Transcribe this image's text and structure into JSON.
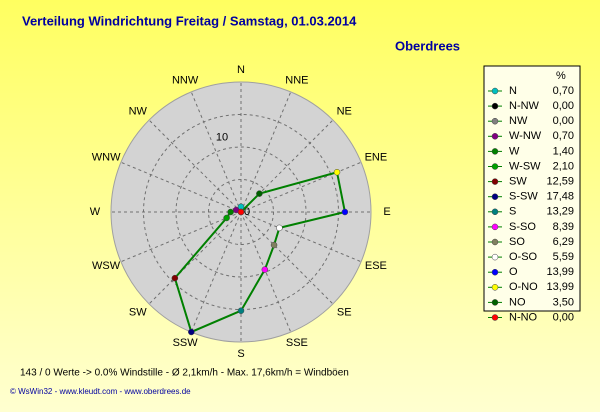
{
  "chart_data": {
    "type": "polar",
    "title": "Verteilung Windrichtung  Freitag / Samstag, 01.03.2014",
    "station": "Oberdrees",
    "legend_header": "%",
    "direction_labels": [
      "N",
      "NNE",
      "NE",
      "ENE",
      "E",
      "ESE",
      "SE",
      "SSE",
      "S",
      "SSW",
      "SW",
      "WSW",
      "W",
      "WNW",
      "NW",
      "NNW"
    ],
    "categories": [
      "N",
      "N-NW",
      "NW",
      "W-NW",
      "W",
      "W-SW",
      "SW",
      "S-SW",
      "S",
      "S-SO",
      "SO",
      "O-SO",
      "O",
      "O-NO",
      "NO",
      "N-NO"
    ],
    "values": [
      0.7,
      0.0,
      0.0,
      0.7,
      1.4,
      2.1,
      12.59,
      17.48,
      13.29,
      8.39,
      6.29,
      5.59,
      13.99,
      13.99,
      3.5,
      0.0
    ],
    "value_labels": [
      "0,70",
      "0,00",
      "0,00",
      "0,70",
      "1,40",
      "2,10",
      "12,59",
      "17,48",
      "13,29",
      "8,39",
      "6,29",
      "5,59",
      "13,99",
      "13,99",
      "3,50",
      "0,00"
    ],
    "colors": [
      "#00c0c0",
      "#000000",
      "#808080",
      "#800080",
      "#008000",
      "#00a000",
      "#800000",
      "#000080",
      "#008080",
      "#ff00ff",
      "#808060",
      "#ffffff",
      "#0000ff",
      "#ffff00",
      "#006000",
      "#ff0000"
    ],
    "line_color": "#008000",
    "rlim": [
      0,
      17.5
    ],
    "rticks": [
      0,
      10
    ],
    "footer": "143 / 0 Werte  -> 0.0% Windstille   -   Ø 2,1km/h  -  Max. 17,6km/h = Windböen",
    "copyright": "© WsWin32  -  www.kleudt.com  -  www.oberdrees.de"
  }
}
